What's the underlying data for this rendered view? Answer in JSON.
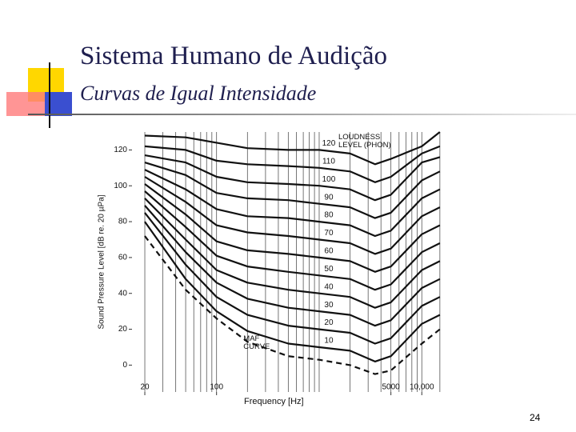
{
  "slide": {
    "title": "Sistema Humano de Audição",
    "subtitle": "Curvas de Igual Intensidade",
    "page_number": "24"
  },
  "chart_data": {
    "type": "line",
    "x_label": "Frequency [Hz]",
    "y_label": "Sound Pressure Level [dB re. 20 µPa]",
    "annotation": "LOUDNESS LEVEL (PHON)",
    "log_x": true,
    "grid": "x",
    "xlim": [
      15,
      18000
    ],
    "ylim": [
      -15,
      130
    ],
    "xticks": [
      20,
      100,
      5000,
      {
        "value": 10000,
        "label": "10,000"
      }
    ],
    "yticks": [
      0,
      20,
      40,
      60,
      80,
      100,
      120
    ],
    "x_gridlines": [
      20,
      30,
      40,
      50,
      60,
      70,
      80,
      90,
      100,
      200,
      300,
      400,
      500,
      600,
      700,
      800,
      900,
      1000,
      2000,
      3000,
      4000,
      5000,
      6000,
      7000,
      8000,
      9000,
      10000,
      15000
    ],
    "x": [
      20,
      50,
      100,
      200,
      500,
      1000,
      2000,
      3500,
      5000,
      10000,
      15000
    ],
    "series": [
      {
        "name": "MAF CURVE",
        "color": "#111111",
        "dashed": true,
        "values": [
          72,
          42,
          26,
          13,
          5,
          3,
          0,
          -5,
          -3,
          12,
          20
        ]
      },
      {
        "name": "10",
        "color": "#111111",
        "values": [
          80,
          48,
          30,
          19,
          12,
          10,
          8,
          2,
          5,
          23,
          28
        ]
      },
      {
        "name": "20",
        "color": "#111111",
        "values": [
          85,
          56,
          38,
          28,
          22,
          20,
          18,
          12,
          15,
          33,
          38
        ]
      },
      {
        "name": "30",
        "color": "#111111",
        "values": [
          89,
          63,
          46,
          37,
          32,
          30,
          28,
          22,
          25,
          43,
          48
        ]
      },
      {
        "name": "40",
        "color": "#111111",
        "values": [
          93,
          70,
          53,
          46,
          42,
          40,
          38,
          32,
          35,
          53,
          58
        ]
      },
      {
        "name": "50",
        "color": "#111111",
        "values": [
          97,
          77,
          61,
          55,
          52,
          50,
          48,
          42,
          45,
          63,
          68
        ]
      },
      {
        "name": "60",
        "color": "#111111",
        "values": [
          101,
          84,
          69,
          64,
          62,
          60,
          58,
          52,
          55,
          73,
          78
        ]
      },
      {
        "name": "70",
        "color": "#111111",
        "values": [
          105,
          91,
          78,
          74,
          72,
          70,
          68,
          62,
          65,
          83,
          88
        ]
      },
      {
        "name": "80",
        "color": "#111111",
        "values": [
          109,
          98,
          87,
          83,
          82,
          80,
          78,
          72,
          75,
          93,
          98
        ]
      },
      {
        "name": "90",
        "color": "#111111",
        "values": [
          113,
          106,
          96,
          93,
          92,
          90,
          88,
          82,
          85,
          103,
          108
        ]
      },
      {
        "name": "100",
        "color": "#111111",
        "values": [
          117,
          113,
          105,
          102,
          101,
          100,
          98,
          92,
          95,
          113,
          116
        ]
      },
      {
        "name": "110",
        "color": "#111111",
        "values": [
          122,
          120,
          114,
          112,
          111,
          110,
          108,
          102,
          105,
          118,
          122
        ]
      },
      {
        "name": "120",
        "color": "#111111",
        "values": [
          128,
          127,
          124,
          121,
          120,
          120,
          118,
          112,
          115,
          122,
          130
        ]
      }
    ]
  }
}
